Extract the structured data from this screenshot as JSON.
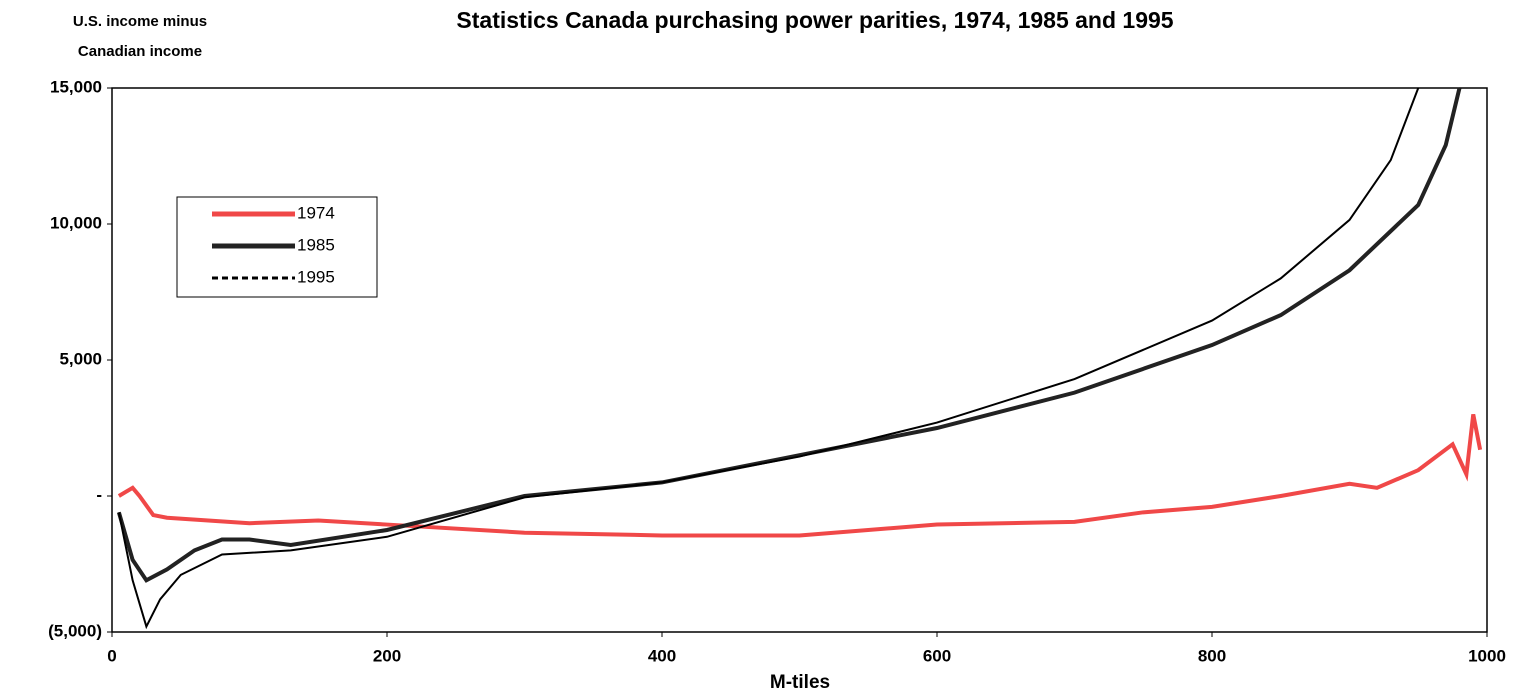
{
  "chart_data": {
    "type": "line",
    "title": "Statistics Canada purchasing power parities, 1974, 1985 and 1995",
    "y_label": [
      "U.S. income minus",
      "Canadian income"
    ],
    "x_label": "M-tiles",
    "xlim": [
      0,
      1000
    ],
    "xticks": [
      0,
      200,
      400,
      600,
      800,
      1000
    ],
    "ylim": [
      -5000,
      15000
    ],
    "yticks": [
      {
        "value": -5000,
        "label": "(5,000)"
      },
      {
        "value": 0,
        "label": "-"
      },
      {
        "value": 5000,
        "label": "5,000"
      },
      {
        "value": 10000,
        "label": "10,000"
      },
      {
        "value": 15000,
        "label": "15,000"
      }
    ],
    "legend": "upper left",
    "series": [
      {
        "name": "1974",
        "color": "#f04848",
        "width": 4,
        "dash": "none",
        "x": [
          5,
          15,
          20,
          30,
          40,
          100,
          150,
          200,
          300,
          400,
          500,
          600,
          700,
          750,
          800,
          850,
          900,
          920,
          950,
          975,
          985,
          990,
          995
        ],
        "values": [
          0,
          300,
          0,
          -700,
          -800,
          -1000,
          -900,
          -1050,
          -1350,
          -1450,
          -1450,
          -1050,
          -950,
          -600,
          -400,
          0,
          450,
          300,
          950,
          1900,
          800,
          3000,
          1700
        ]
      },
      {
        "name": "1985",
        "color": "#222222",
        "width": 4,
        "dash": "none",
        "x": [
          5,
          15,
          25,
          40,
          60,
          80,
          100,
          130,
          200,
          300,
          400,
          500,
          600,
          700,
          800,
          850,
          900,
          950,
          970,
          980
        ],
        "values": [
          -600,
          -2350,
          -3100,
          -2700,
          -2000,
          -1600,
          -1600,
          -1800,
          -1250,
          0,
          500,
          1500,
          2500,
          3800,
          5550,
          6650,
          8300,
          10700,
          12900,
          15000
        ]
      },
      {
        "name": "1995",
        "color": "#000000",
        "width": 2,
        "dash": "6,4",
        "x": [
          5,
          15,
          25,
          35,
          50,
          80,
          130,
          200,
          300,
          400,
          500,
          600,
          700,
          800,
          850,
          900,
          930,
          950
        ],
        "values": [
          -600,
          -3100,
          -4800,
          -3800,
          -2900,
          -2150,
          -2000,
          -1500,
          -50,
          500,
          1450,
          2700,
          4300,
          6450,
          8000,
          10150,
          12350,
          15000
        ]
      }
    ]
  }
}
